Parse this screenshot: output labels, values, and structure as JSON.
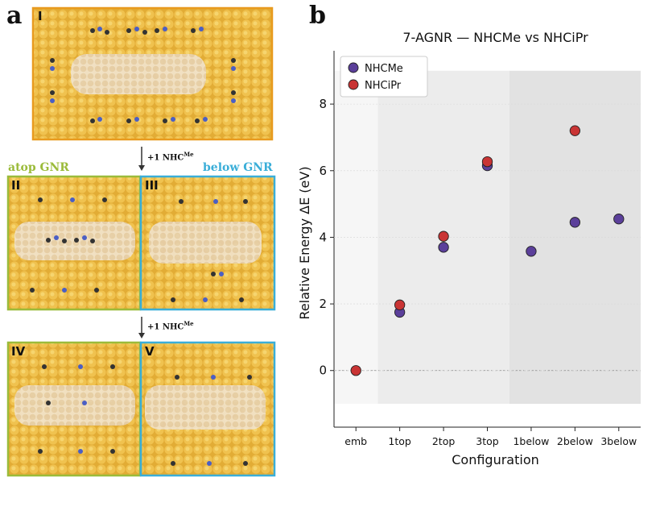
{
  "panel_a": {
    "letter": "a",
    "frames": [
      "I",
      "II",
      "III",
      "IV",
      "V"
    ],
    "atop_caption": "atop GNR",
    "below_caption": "below GNR",
    "step_label": "+1 NHC",
    "step_label_sup": "Me",
    "colors": {
      "gold": "#e8b43c",
      "orange_frame": "#e89a1e",
      "green_frame": "#9bbb3a",
      "blue_frame": "#3aaed8"
    }
  },
  "panel_b": {
    "letter": "b"
  },
  "chart_data": {
    "type": "scatter",
    "title": "7-AGNR — NHCMe vs NHCiPr",
    "xlabel": "Configuration",
    "ylabel": "Relative Energy ΔE (eV)",
    "categories": [
      "emb",
      "1top",
      "2top",
      "3top",
      "1below",
      "2below",
      "3below"
    ],
    "ylim": [
      -1.7,
      9.6
    ],
    "yticks": [
      0,
      2,
      4,
      6,
      8
    ],
    "legend_position": "top-left",
    "reference_line_y": 0,
    "series": [
      {
        "name": "NHCMe",
        "color": "#5b3f9a",
        "values": [
          null,
          1.75,
          3.7,
          6.15,
          3.58,
          4.45,
          4.55
        ]
      },
      {
        "name": "NHCiPr",
        "color": "#c93434",
        "values": [
          0.0,
          1.97,
          4.03,
          6.27,
          null,
          7.2,
          null
        ]
      }
    ],
    "shaded_regions": [
      {
        "from": "emb",
        "to": "emb",
        "color": "#f6f6f6"
      },
      {
        "from": "1top",
        "to": "3top",
        "color": "#ececec"
      },
      {
        "from": "1below",
        "to": "3below",
        "color": "#e2e2e2"
      }
    ]
  }
}
